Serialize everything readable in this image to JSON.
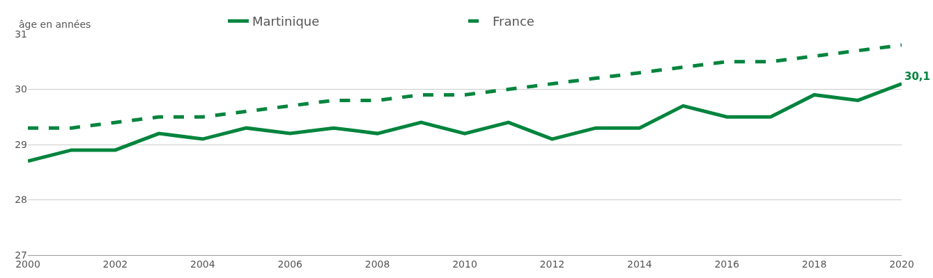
{
  "chart_data": {
    "type": "line",
    "ylabel": "âge en années",
    "x": [
      2000,
      2001,
      2002,
      2003,
      2004,
      2005,
      2006,
      2007,
      2008,
      2009,
      2010,
      2011,
      2012,
      2013,
      2014,
      2015,
      2016,
      2017,
      2018,
      2019,
      2020
    ],
    "series": [
      {
        "name": "Martinique",
        "color": "#00843d",
        "line_style": "solid",
        "values": [
          28.7,
          28.9,
          28.9,
          29.2,
          29.1,
          29.3,
          29.2,
          29.3,
          29.2,
          29.4,
          29.2,
          29.4,
          29.1,
          29.3,
          29.3,
          29.7,
          29.5,
          29.5,
          29.9,
          29.8,
          30.1
        ]
      },
      {
        "name": "France",
        "color": "#00843d",
        "line_style": "dashed",
        "values": [
          29.3,
          29.3,
          29.4,
          29.5,
          29.5,
          29.6,
          29.7,
          29.8,
          29.8,
          29.9,
          29.9,
          30.0,
          30.1,
          30.2,
          30.3,
          30.4,
          30.5,
          30.5,
          30.6,
          30.7,
          30.8
        ]
      }
    ],
    "annotations": [
      {
        "text": "30,1",
        "x": 2020,
        "y": 30.1
      }
    ],
    "xlim": [
      2000,
      2020
    ],
    "xticks": [
      2000,
      2002,
      2004,
      2006,
      2008,
      2010,
      2012,
      2014,
      2016,
      2018,
      2020
    ],
    "ylim": [
      27,
      31
    ],
    "yticks": [
      27,
      28,
      29,
      30,
      31
    ],
    "grid": "y",
    "legend": "top",
    "marker": "none"
  }
}
